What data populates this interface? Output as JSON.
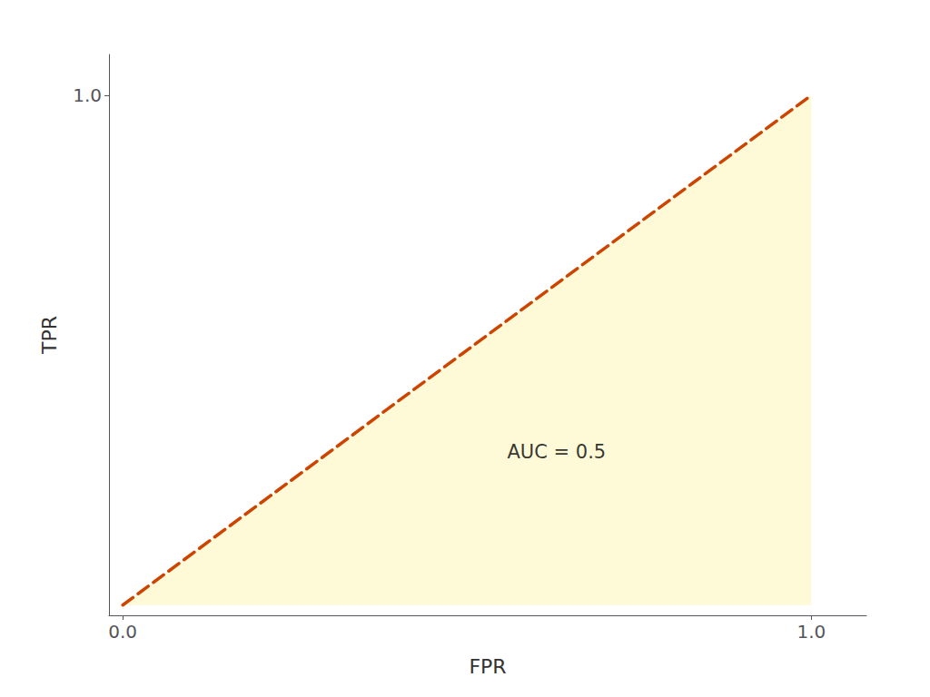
{
  "chart_data": {
    "type": "line",
    "xlabel": "FPR",
    "ylabel": "TPR",
    "x": [
      0,
      1
    ],
    "series": [
      {
        "type": "area",
        "color": "#fef9d7",
        "values": [
          0,
          1
        ]
      },
      {
        "type": "line",
        "color": "#cc4400",
        "line_style": "dashed",
        "values": [
          0,
          1
        ]
      }
    ],
    "xlim": [
      -0.02,
      1.08
    ],
    "ylim": [
      -0.02,
      1.08
    ],
    "xticks": [
      {
        "value": 0,
        "label": "0.0"
      },
      {
        "value": 1,
        "label": "1.0"
      }
    ],
    "yticks": [
      {
        "value": 1,
        "label": "1.0"
      }
    ],
    "annotations": [
      {
        "text": "AUC = 0.5",
        "x": 0.63,
        "y": 0.3
      }
    ],
    "grid": false
  }
}
